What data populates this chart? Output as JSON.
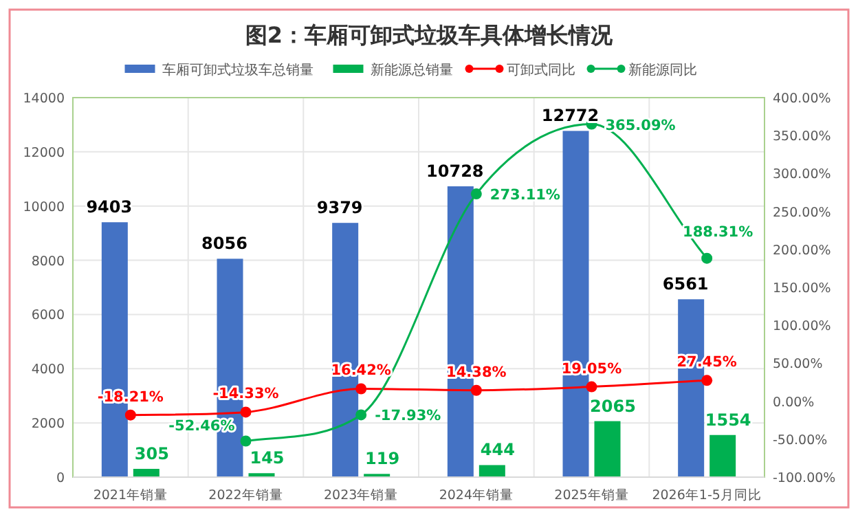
{
  "chart_data": {
    "type": "bar",
    "title": "图2：车厢可卸式垃圾车具体增长情况",
    "categories": [
      "2021年销量",
      "2022年销量",
      "2023年销量",
      "2024年销量",
      "2025年销量",
      "2026年1-5月同比"
    ],
    "series": [
      {
        "name": "车厢可卸式垃圾车总销量",
        "color": "#4472c4",
        "values": [
          9403,
          8056,
          9379,
          10728,
          12772,
          6561
        ],
        "value_labels": [
          "9403",
          "8056",
          "9379",
          "10728",
          "12772",
          "6561"
        ]
      },
      {
        "name": "新能源总销量",
        "color": "#00b050",
        "values": [
          305,
          145,
          119,
          444,
          2065,
          1554
        ],
        "value_labels": [
          "305",
          "145",
          "119",
          "444",
          "2065",
          "1554"
        ]
      },
      {
        "name": "可卸式同比",
        "color": "#ff0000",
        "type": "line",
        "axis": "y2",
        "marker": "circle",
        "values": [
          -18.21,
          -14.33,
          16.42,
          14.38,
          19.05,
          27.45
        ],
        "value_labels": [
          "-18.21%",
          "-14.33%",
          "16.42%",
          "14.38%",
          "19.05%",
          "27.45%"
        ]
      },
      {
        "name": "新能源同比",
        "color": "#00b050",
        "type": "line",
        "axis": "y2",
        "marker": "circle",
        "values": [
          null,
          -52.46,
          -17.93,
          273.11,
          365.09,
          188.31
        ],
        "value_labels": [
          null,
          "-52.46%",
          "-17.93%",
          "273.11%",
          "365.09%",
          "188.31%"
        ]
      }
    ],
    "ylim": [
      0,
      14000
    ],
    "yticks": [
      0,
      2000,
      4000,
      6000,
      8000,
      10000,
      12000,
      14000
    ],
    "y2lim": [
      -100,
      400
    ],
    "y2ticks": [
      {
        "value": -100,
        "label": "-100.00%"
      },
      {
        "value": -50,
        "label": "-50.00%"
      },
      {
        "value": 0,
        "label": "0.00%"
      },
      {
        "value": 50,
        "label": "50.00%"
      },
      {
        "value": 100,
        "label": "100.00%"
      },
      {
        "value": 150,
        "label": "150.00%"
      },
      {
        "value": 200,
        "label": "200.00%"
      },
      {
        "value": 250,
        "label": "250.00%"
      },
      {
        "value": 300,
        "label": "300.00%"
      },
      {
        "value": 350,
        "label": "350.00%"
      },
      {
        "value": 400,
        "label": "400.00%"
      }
    ],
    "grid": true,
    "legend": "top"
  }
}
